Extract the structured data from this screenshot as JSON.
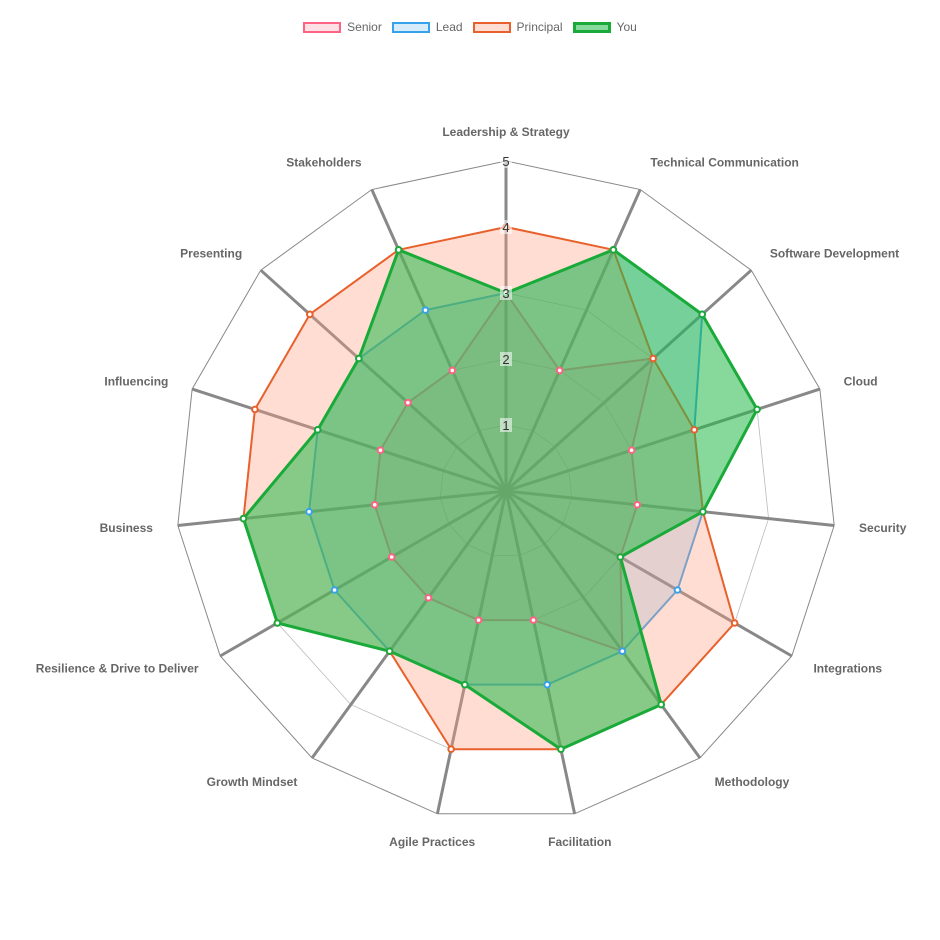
{
  "chart_data": {
    "type": "radar",
    "title": "",
    "axes": [
      "Leadership & Strategy",
      "Technical Communication",
      "Software Development",
      "Cloud",
      "Security",
      "Integrations",
      "Methodology",
      "Facilitation",
      "Agile Practices",
      "Growth Mindset",
      "Resilience & Drive to Deliver",
      "Business",
      "Influencing",
      "Presenting",
      "Stakeholders"
    ],
    "ticks": [
      "1",
      "2",
      "3",
      "4",
      "5"
    ],
    "range": [
      0,
      5
    ],
    "legend_position": "top",
    "series": [
      {
        "name": "Senior",
        "color": "#ff6384",
        "fill": "rgba(255,99,132,0.2)",
        "values": [
          3,
          2,
          3,
          2,
          2,
          2,
          3,
          2,
          2,
          2,
          2,
          2,
          2,
          2,
          2
        ]
      },
      {
        "name": "Lead",
        "color": "#36a2eb",
        "fill": "rgba(54,162,235,0.2)",
        "values": [
          3,
          4,
          4,
          3,
          3,
          3,
          3,
          3,
          3,
          3,
          3,
          3,
          3,
          3,
          3
        ]
      },
      {
        "name": "Principal",
        "color": "#e8612c",
        "fill": "rgba(255,159,130,0.35)",
        "values": [
          4,
          4,
          3,
          3,
          3,
          4,
          4,
          4,
          4,
          3,
          4,
          4,
          4,
          4,
          4
        ]
      },
      {
        "name": "You",
        "color": "#1aaa3a",
        "fill": "rgba(36,186,72,0.55)",
        "values": [
          3,
          4,
          4,
          4,
          3,
          2,
          4,
          4,
          3,
          3,
          4,
          4,
          3,
          3,
          4
        ]
      }
    ]
  }
}
